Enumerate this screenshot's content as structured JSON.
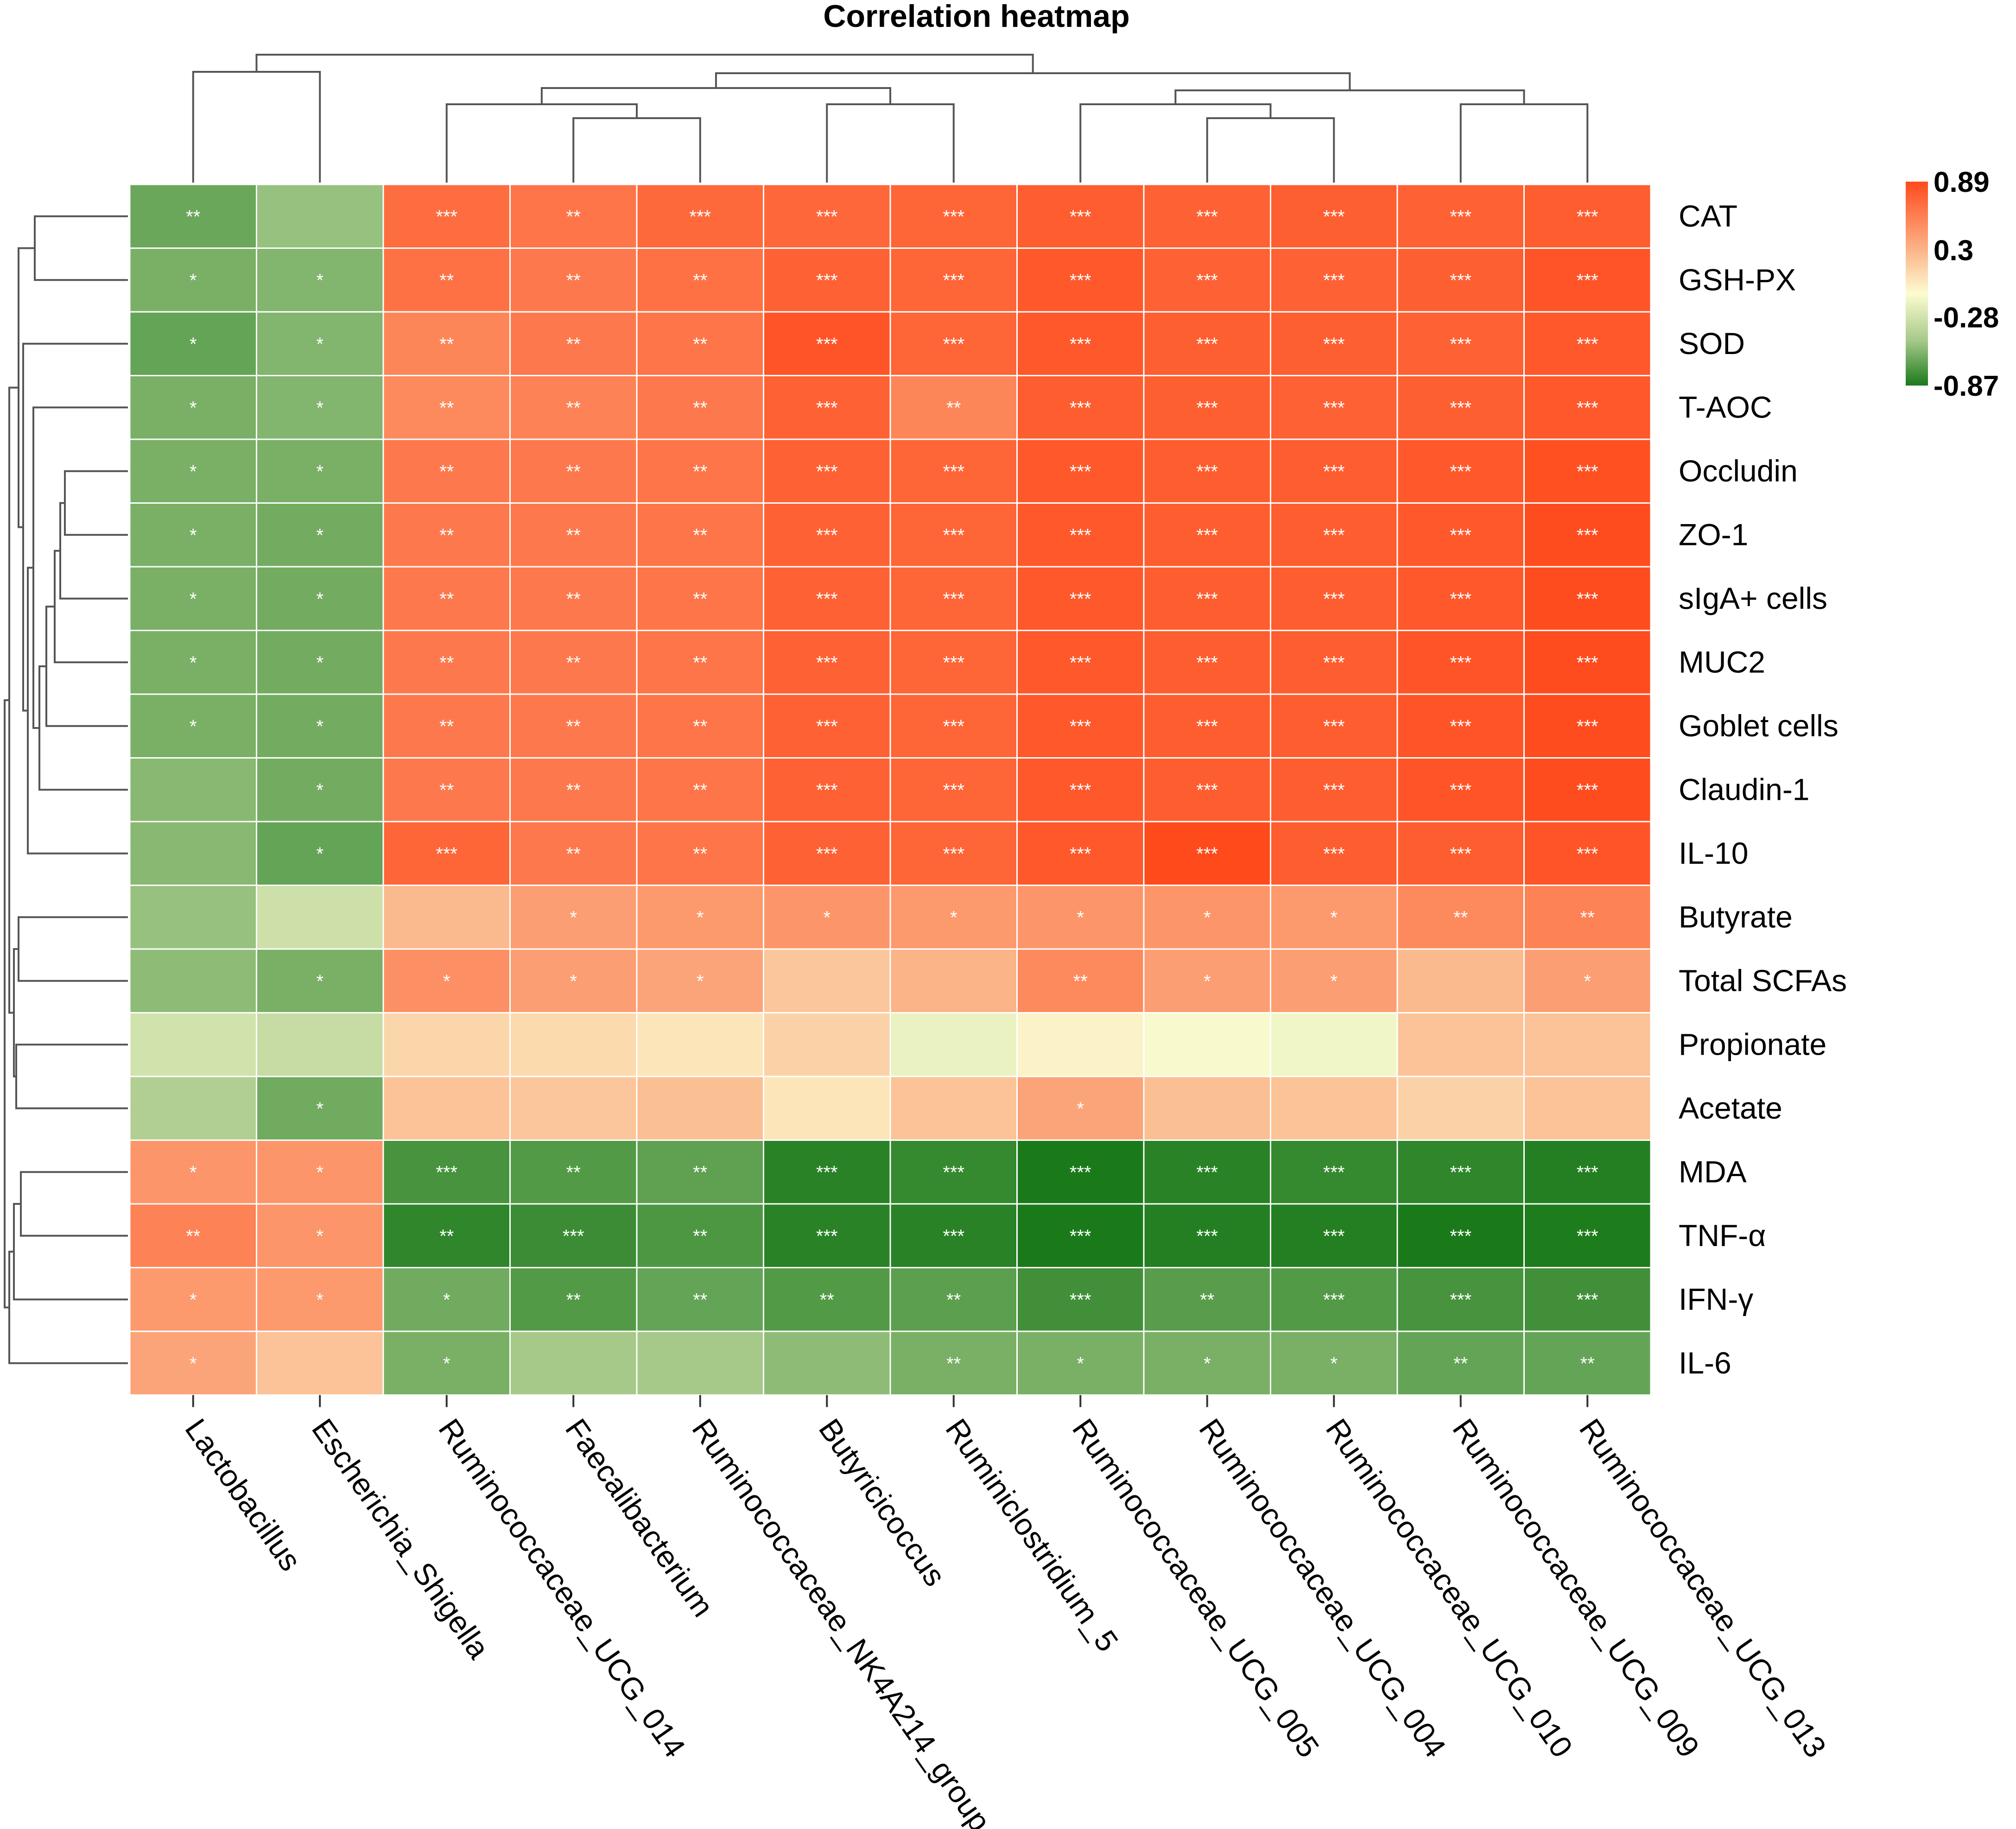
{
  "chart_data": {
    "type": "heatmap",
    "title": "Correlation heatmap",
    "columns": [
      "Lactobacillus",
      "Escherichia_Shigella",
      "Ruminococcaceae_UCG_014",
      "Faecalibacterium",
      "Ruminococcaceae_NK4A214_group",
      "Butyricicoccus",
      "Ruminiclostridium_5",
      "Ruminococcaceae_UCG_005",
      "Ruminococcaceae_UCG_004",
      "Ruminococcaceae_UCG_010",
      "Ruminococcaceae_UCG_009",
      "Ruminococcaceae_UCG_013"
    ],
    "rows": [
      "CAT",
      "GSH-PX",
      "SOD",
      "T-AOC",
      "Occludin",
      "ZO-1",
      "sIgA+ cells",
      "MUC2",
      "Goblet cells",
      "Claudin-1",
      "IL-10",
      "Butyrate",
      "Total SCFAs",
      "Propionate",
      "Acetate",
      "MDA",
      "TNF-α",
      "IFN-γ",
      "IL-6"
    ],
    "values": [
      [
        -0.6,
        -0.45,
        0.72,
        0.68,
        0.74,
        0.75,
        0.76,
        0.8,
        0.78,
        0.79,
        0.78,
        0.8
      ],
      [
        -0.55,
        -0.52,
        0.7,
        0.66,
        0.7,
        0.78,
        0.76,
        0.82,
        0.78,
        0.78,
        0.79,
        0.84
      ],
      [
        -0.62,
        -0.52,
        0.6,
        0.66,
        0.68,
        0.84,
        0.76,
        0.82,
        0.79,
        0.79,
        0.78,
        0.82
      ],
      [
        -0.55,
        -0.52,
        0.58,
        0.62,
        0.66,
        0.78,
        0.6,
        0.8,
        0.79,
        0.78,
        0.79,
        0.82
      ],
      [
        -0.55,
        -0.55,
        0.66,
        0.66,
        0.68,
        0.78,
        0.76,
        0.82,
        0.8,
        0.8,
        0.82,
        0.86
      ],
      [
        -0.55,
        -0.57,
        0.66,
        0.66,
        0.68,
        0.78,
        0.76,
        0.82,
        0.8,
        0.8,
        0.82,
        0.88
      ],
      [
        -0.55,
        -0.57,
        0.66,
        0.66,
        0.68,
        0.78,
        0.76,
        0.82,
        0.8,
        0.8,
        0.82,
        0.88
      ],
      [
        -0.55,
        -0.57,
        0.66,
        0.66,
        0.68,
        0.78,
        0.76,
        0.82,
        0.8,
        0.8,
        0.84,
        0.88
      ],
      [
        -0.55,
        -0.57,
        0.66,
        0.66,
        0.68,
        0.78,
        0.76,
        0.82,
        0.8,
        0.8,
        0.84,
        0.88
      ],
      [
        -0.5,
        -0.57,
        0.66,
        0.66,
        0.68,
        0.78,
        0.76,
        0.82,
        0.8,
        0.8,
        0.84,
        0.88
      ],
      [
        -0.5,
        -0.62,
        0.76,
        0.66,
        0.68,
        0.78,
        0.76,
        0.82,
        0.89,
        0.8,
        0.8,
        0.84
      ],
      [
        -0.45,
        -0.22,
        0.35,
        0.48,
        0.5,
        0.52,
        0.5,
        0.52,
        0.52,
        0.5,
        0.58,
        0.62
      ],
      [
        -0.48,
        -0.55,
        0.55,
        0.48,
        0.45,
        0.28,
        0.38,
        0.58,
        0.48,
        0.48,
        0.35,
        0.48
      ],
      [
        -0.2,
        -0.25,
        0.2,
        0.18,
        0.12,
        0.22,
        -0.08,
        0.05,
        -0.02,
        -0.05,
        0.3,
        0.3
      ],
      [
        -0.35,
        -0.58,
        0.3,
        0.28,
        0.32,
        0.12,
        0.3,
        0.45,
        0.32,
        0.3,
        0.22,
        0.3
      ],
      [
        0.52,
        0.52,
        -0.72,
        -0.68,
        -0.64,
        -0.82,
        -0.78,
        -0.87,
        -0.82,
        -0.78,
        -0.8,
        -0.84
      ],
      [
        0.62,
        0.52,
        -0.8,
        -0.76,
        -0.7,
        -0.82,
        -0.82,
        -0.87,
        -0.84,
        -0.84,
        -0.87,
        -0.86
      ],
      [
        0.5,
        0.5,
        -0.58,
        -0.68,
        -0.62,
        -0.68,
        -0.65,
        -0.74,
        -0.66,
        -0.68,
        -0.72,
        -0.74
      ],
      [
        0.45,
        0.3,
        -0.55,
        -0.4,
        -0.4,
        -0.48,
        -0.55,
        -0.55,
        -0.55,
        -0.55,
        -0.62,
        -0.62
      ]
    ],
    "significance": [
      [
        "**",
        "",
        "***",
        "**",
        "***",
        "***",
        "***",
        "***",
        "***",
        "***",
        "***",
        "***"
      ],
      [
        "*",
        "*",
        "**",
        "**",
        "**",
        "***",
        "***",
        "***",
        "***",
        "***",
        "***",
        "***"
      ],
      [
        "*",
        "*",
        "**",
        "**",
        "**",
        "***",
        "***",
        "***",
        "***",
        "***",
        "***",
        "***"
      ],
      [
        "*",
        "*",
        "**",
        "**",
        "**",
        "***",
        "**",
        "***",
        "***",
        "***",
        "***",
        "***"
      ],
      [
        "*",
        "*",
        "**",
        "**",
        "**",
        "***",
        "***",
        "***",
        "***",
        "***",
        "***",
        "***"
      ],
      [
        "*",
        "*",
        "**",
        "**",
        "**",
        "***",
        "***",
        "***",
        "***",
        "***",
        "***",
        "***"
      ],
      [
        "*",
        "*",
        "**",
        "**",
        "**",
        "***",
        "***",
        "***",
        "***",
        "***",
        "***",
        "***"
      ],
      [
        "*",
        "*",
        "**",
        "**",
        "**",
        "***",
        "***",
        "***",
        "***",
        "***",
        "***",
        "***"
      ],
      [
        "*",
        "*",
        "**",
        "**",
        "**",
        "***",
        "***",
        "***",
        "***",
        "***",
        "***",
        "***"
      ],
      [
        "",
        "*",
        "**",
        "**",
        "**",
        "***",
        "***",
        "***",
        "***",
        "***",
        "***",
        "***"
      ],
      [
        "",
        "*",
        "***",
        "**",
        "**",
        "***",
        "***",
        "***",
        "***",
        "***",
        "***",
        "***"
      ],
      [
        "",
        "",
        "",
        "*",
        "*",
        "*",
        "*",
        "*",
        "*",
        "*",
        "**",
        "**"
      ],
      [
        "",
        "*",
        "*",
        "*",
        "*",
        "",
        "",
        "**",
        "*",
        "*",
        "",
        "*"
      ],
      [
        "",
        "",
        "",
        "",
        "",
        "",
        "",
        "",
        "",
        "",
        "",
        ""
      ],
      [
        "",
        "*",
        "",
        "",
        "",
        "",
        "",
        "*",
        "",
        "",
        "",
        ""
      ],
      [
        "*",
        "*",
        "***",
        "**",
        "**",
        "***",
        "***",
        "***",
        "***",
        "***",
        "***",
        "***"
      ],
      [
        "**",
        "*",
        "**",
        "***",
        "**",
        "***",
        "***",
        "***",
        "***",
        "***",
        "***",
        "***"
      ],
      [
        "*",
        "*",
        "*",
        "**",
        "**",
        "**",
        "**",
        "***",
        "**",
        "***",
        "***",
        "***"
      ],
      [
        "*",
        "",
        "*",
        "",
        "",
        "",
        "**",
        "*",
        "*",
        "*",
        "**",
        "**"
      ]
    ],
    "legend": {
      "range": [
        -0.87,
        0.89
      ],
      "ticks": [
        {
          "value": 0.89,
          "label": "0.89"
        },
        {
          "value": 0.3,
          "label": "0.3"
        },
        {
          "value": -0.28,
          "label": "-0.28"
        },
        {
          "value": -0.87,
          "label": "-0.87"
        }
      ],
      "placement": "top-right"
    },
    "colors": {
      "high": "#ff4a1c",
      "mid_high": "#fbb98e",
      "mid": "#fcfcd0",
      "mid_low": "#a6c98a",
      "low": "#1a7a1a"
    }
  }
}
